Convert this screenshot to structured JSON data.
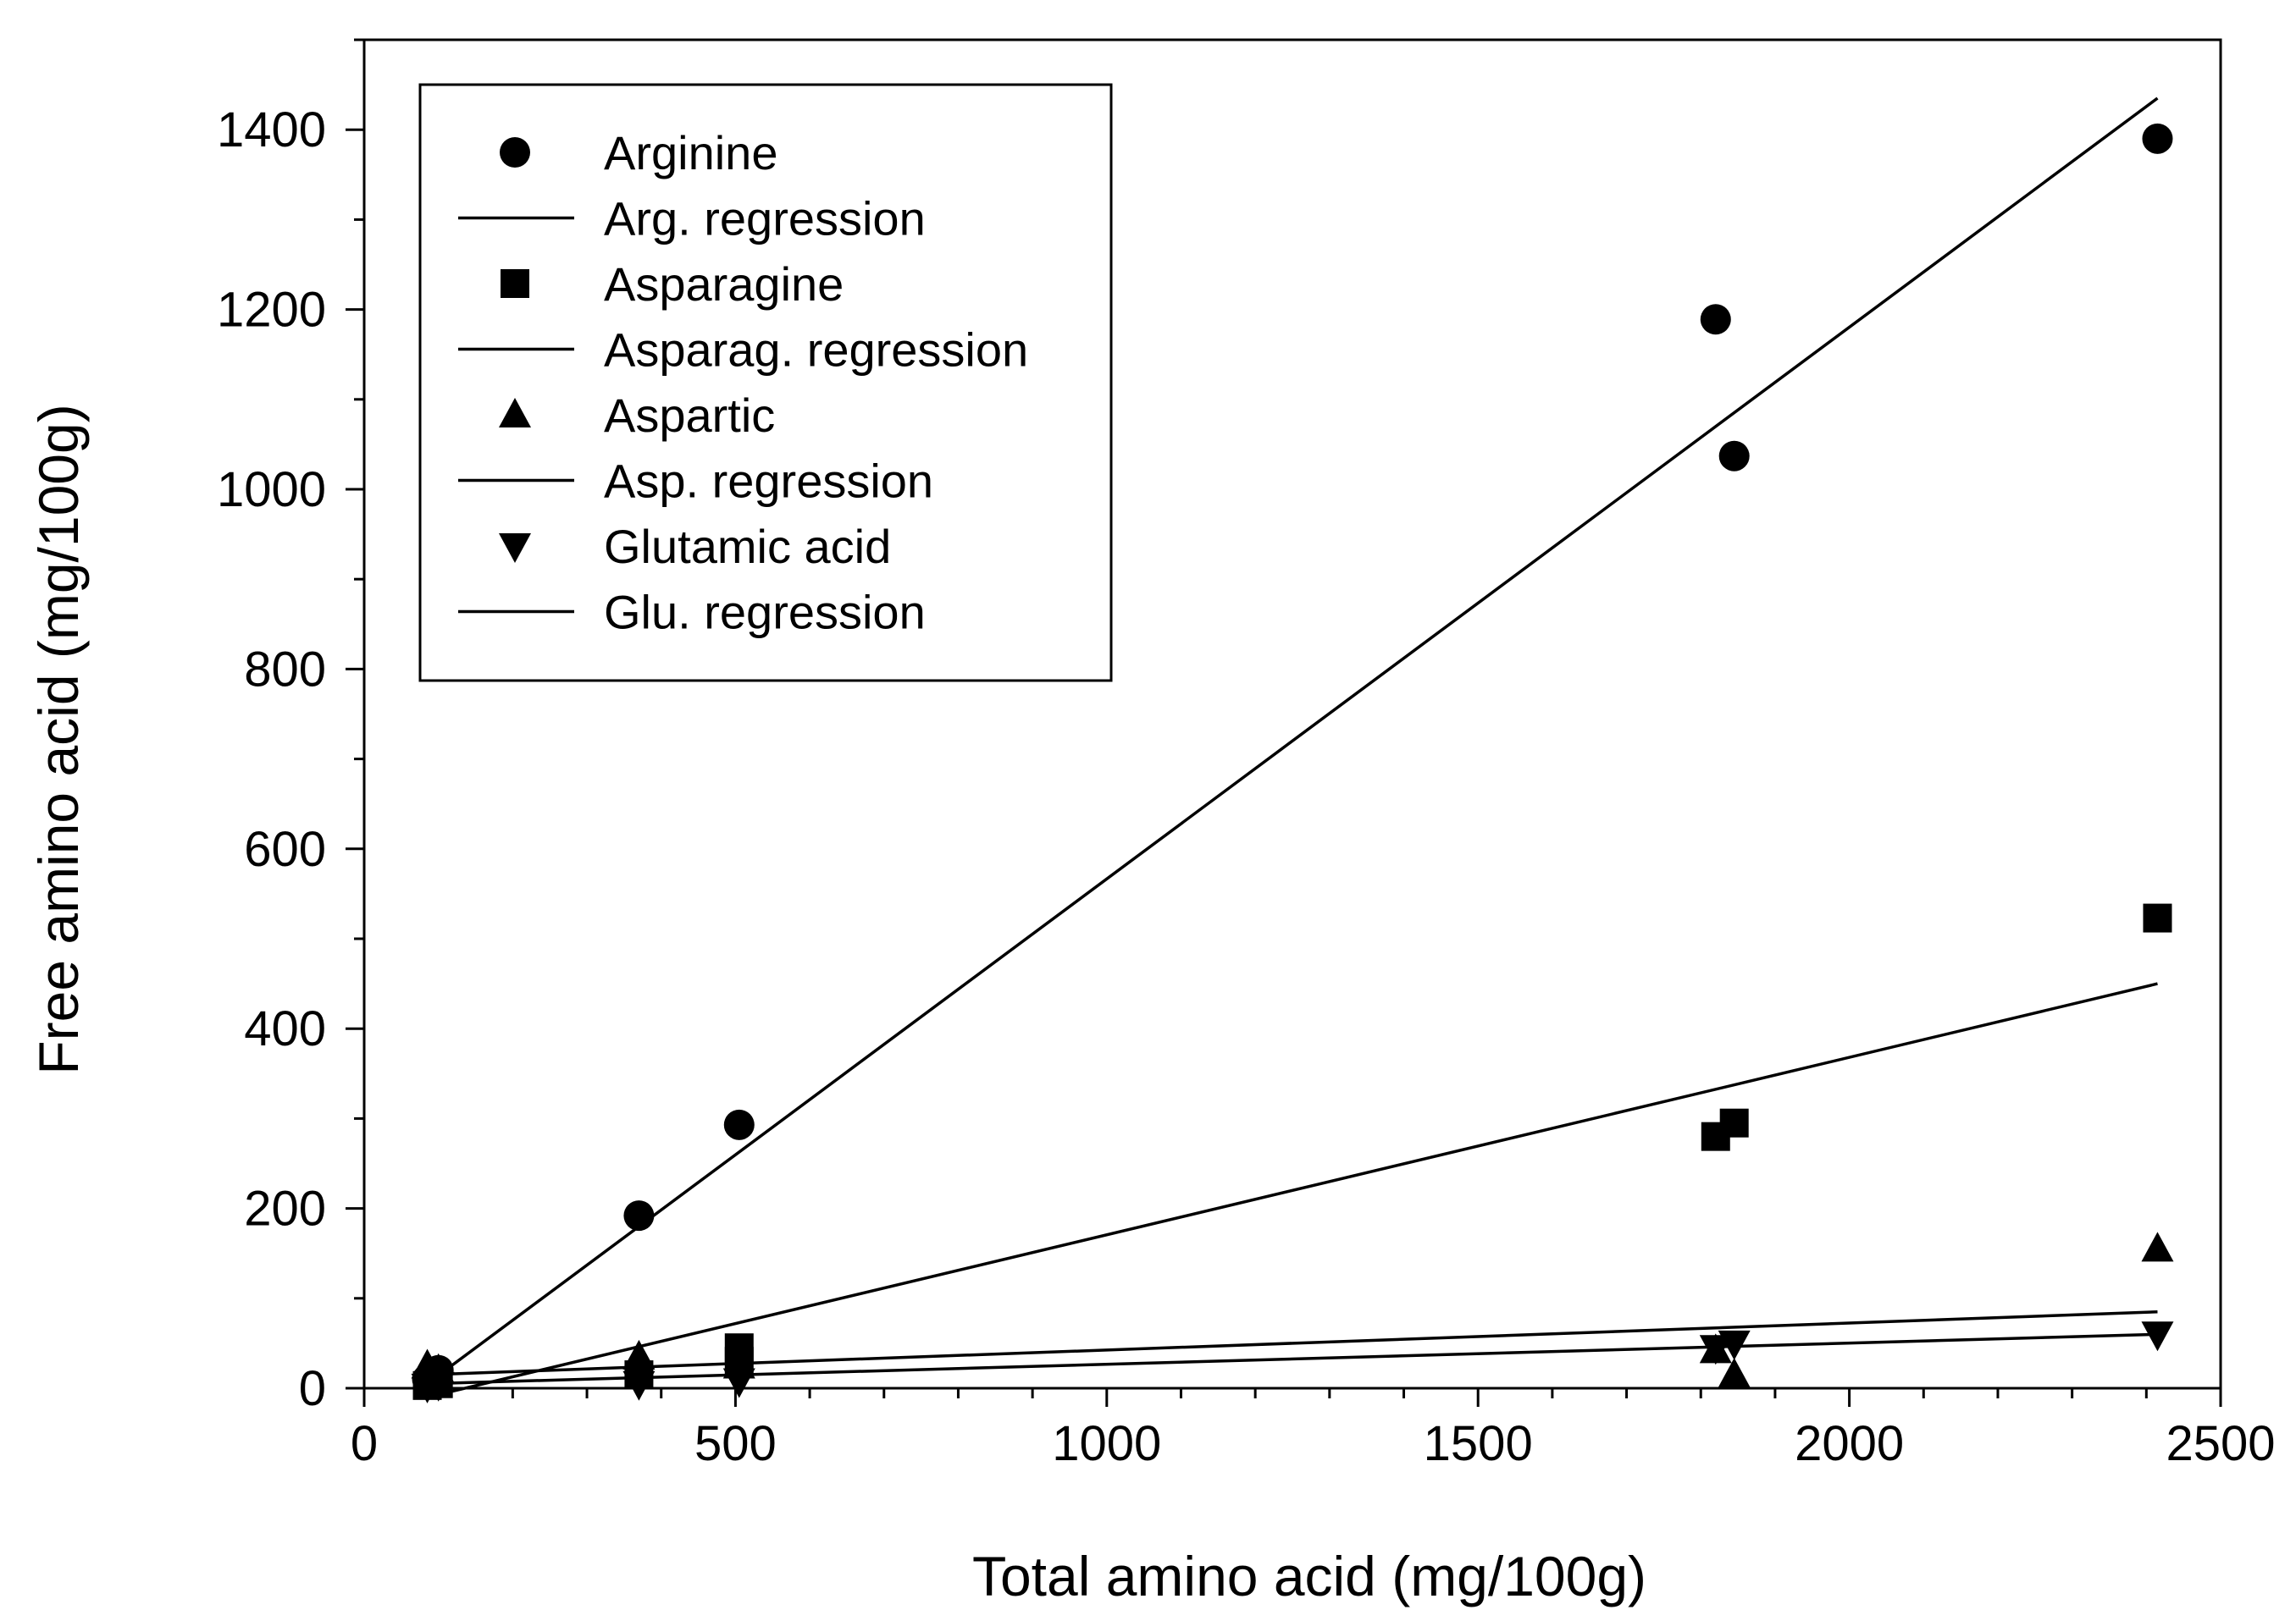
{
  "chart_data": {
    "type": "scatter",
    "title": "",
    "xlabel": "Total amino acid (mg/100g)",
    "ylabel": "Free amino acid (mg/100g)",
    "xlim": [
      0,
      2500
    ],
    "ylim": [
      0,
      1500
    ],
    "x_ticks": [
      0,
      500,
      1000,
      1500,
      2000,
      2500
    ],
    "y_ticks": [
      0,
      200,
      400,
      600,
      800,
      1000,
      1200,
      1400
    ],
    "x_minor_step": 100,
    "y_minor_step": 100,
    "grid": false,
    "legend_position": "top-left",
    "series": [
      {
        "name": "Arginine",
        "marker": "circle",
        "x": [
          85,
          100,
          370,
          505,
          1820,
          1845,
          2415
        ],
        "y": [
          10,
          20,
          192,
          293,
          1189,
          1037,
          1390
        ]
      },
      {
        "name": "Asparagine",
        "marker": "square",
        "x": [
          85,
          100,
          370,
          505,
          505,
          1820,
          1845,
          2415
        ],
        "y": [
          3,
          5,
          15,
          30,
          45,
          280,
          295,
          523
        ]
      },
      {
        "name": "Aspartic",
        "marker": "triangle-up",
        "x": [
          85,
          100,
          370,
          505,
          1820,
          1845,
          2415
        ],
        "y": [
          25,
          20,
          35,
          25,
          42,
          15,
          155
        ]
      },
      {
        "name": "Glutamic acid",
        "marker": "triangle-down",
        "x": [
          85,
          100,
          370,
          505,
          1820,
          1845,
          2415
        ],
        "y": [
          2,
          4,
          5,
          8,
          45,
          50,
          60
        ]
      }
    ],
    "regressions": [
      {
        "name": "Arg. regression",
        "x": [
          85,
          2415
        ],
        "y": [
          5,
          1435
        ]
      },
      {
        "name": "Asparag. regression",
        "x": [
          85,
          2415
        ],
        "y": [
          -10,
          450
        ]
      },
      {
        "name": "Asp. regression",
        "x": [
          85,
          2415
        ],
        "y": [
          15,
          85
        ]
      },
      {
        "name": "Glu. regression",
        "x": [
          85,
          2415
        ],
        "y": [
          5,
          60
        ]
      }
    ],
    "legend_entries": [
      {
        "label": "Arginine",
        "kind": "marker",
        "marker": "circle"
      },
      {
        "label": "Arg. regression",
        "kind": "line"
      },
      {
        "label": "Asparagine",
        "kind": "marker",
        "marker": "square"
      },
      {
        "label": "Asparag. regression",
        "kind": "line"
      },
      {
        "label": "Aspartic",
        "kind": "marker",
        "marker": "triangle-up"
      },
      {
        "label": "Asp. regression",
        "kind": "line"
      },
      {
        "label": "Glutamic acid",
        "kind": "marker",
        "marker": "triangle-down"
      },
      {
        "label": "Glu. regression",
        "kind": "line"
      }
    ],
    "colors": {
      "ink": "#000000",
      "background": "#ffffff"
    }
  }
}
